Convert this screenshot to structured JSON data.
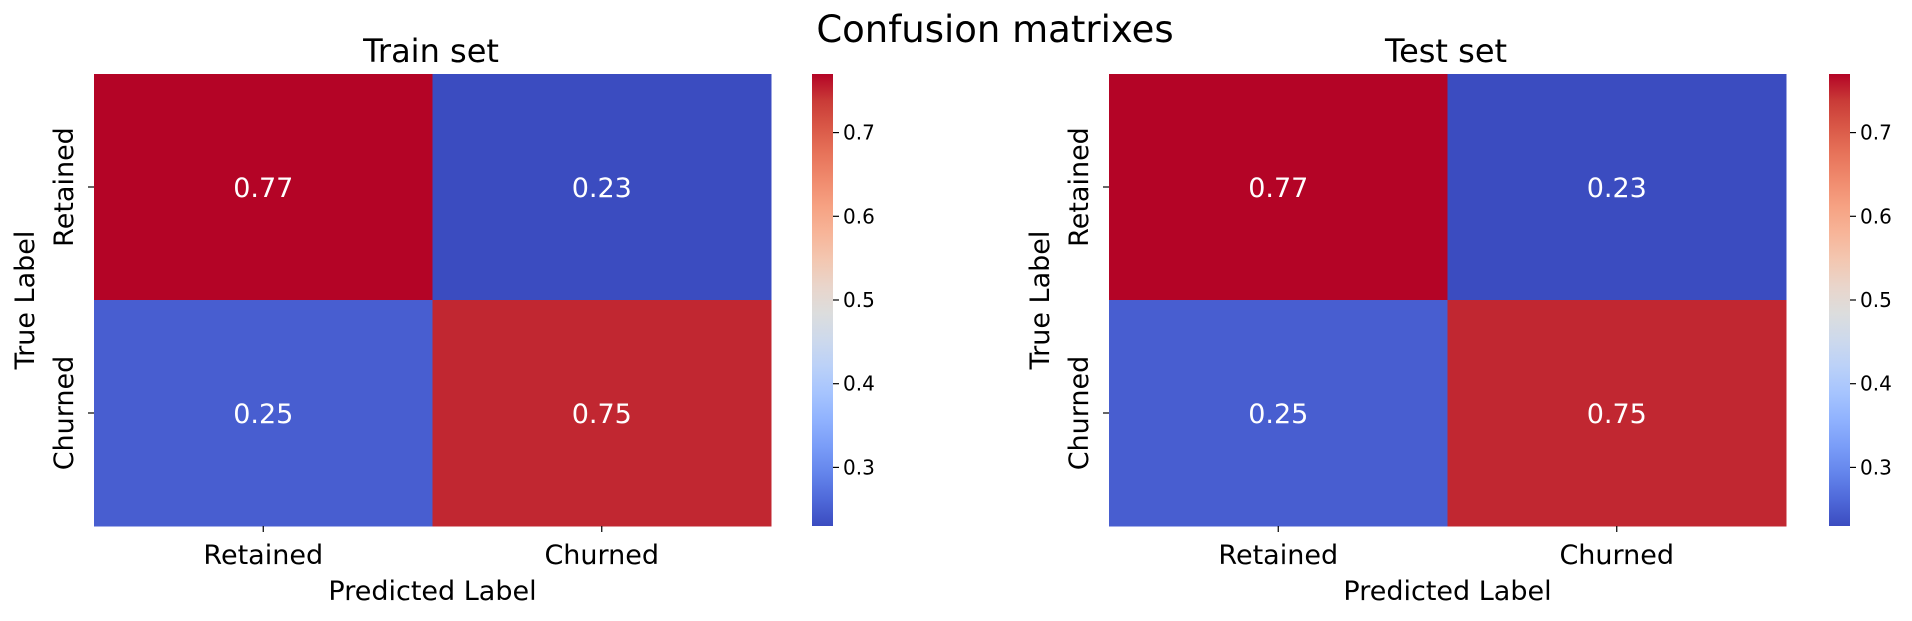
{
  "figure": {
    "title": "Confusion matrixes"
  },
  "colormap": {
    "name": "coolwarm",
    "stops": [
      "#3b4cc0",
      "#4f69d9",
      "#6485ec",
      "#7a9df8",
      "#90b2fe",
      "#a6c4fe",
      "#bbd1f8",
      "#cdd9ec",
      "#dcdddd",
      "#e9d5cb",
      "#f3c7b1",
      "#f7b599",
      "#f6a283",
      "#f08b6e",
      "#e7735a",
      "#d95847",
      "#c93b37",
      "#b40426"
    ]
  },
  "chart_data": [
    {
      "type": "heatmap",
      "title": "Train set",
      "xlabel": "Predicted Label",
      "ylabel": "True Label",
      "x_categories": [
        "Retained",
        "Churned"
      ],
      "y_categories": [
        "Retained",
        "Churned"
      ],
      "values": [
        [
          0.77,
          0.23
        ],
        [
          0.25,
          0.75
        ]
      ],
      "value_labels": [
        [
          "0.77",
          "0.23"
        ],
        [
          "0.25",
          "0.75"
        ]
      ],
      "colorbar": {
        "range": [
          0.23,
          0.77
        ],
        "ticks": [
          0.3,
          0.4,
          0.5,
          0.6,
          0.7
        ],
        "tick_labels": [
          "0.3",
          "0.4",
          "0.5",
          "0.6",
          "0.7"
        ]
      }
    },
    {
      "type": "heatmap",
      "title": "Test set",
      "xlabel": "Predicted Label",
      "ylabel": "True Label",
      "x_categories": [
        "Retained",
        "Churned"
      ],
      "y_categories": [
        "Retained",
        "Churned"
      ],
      "values": [
        [
          0.77,
          0.23
        ],
        [
          0.25,
          0.75
        ]
      ],
      "value_labels": [
        [
          "0.77",
          "0.23"
        ],
        [
          "0.25",
          "0.75"
        ]
      ],
      "colorbar": {
        "range": [
          0.23,
          0.77
        ],
        "ticks": [
          0.3,
          0.4,
          0.5,
          0.6,
          0.7
        ],
        "tick_labels": [
          "0.3",
          "0.4",
          "0.5",
          "0.6",
          "0.7"
        ]
      }
    }
  ]
}
